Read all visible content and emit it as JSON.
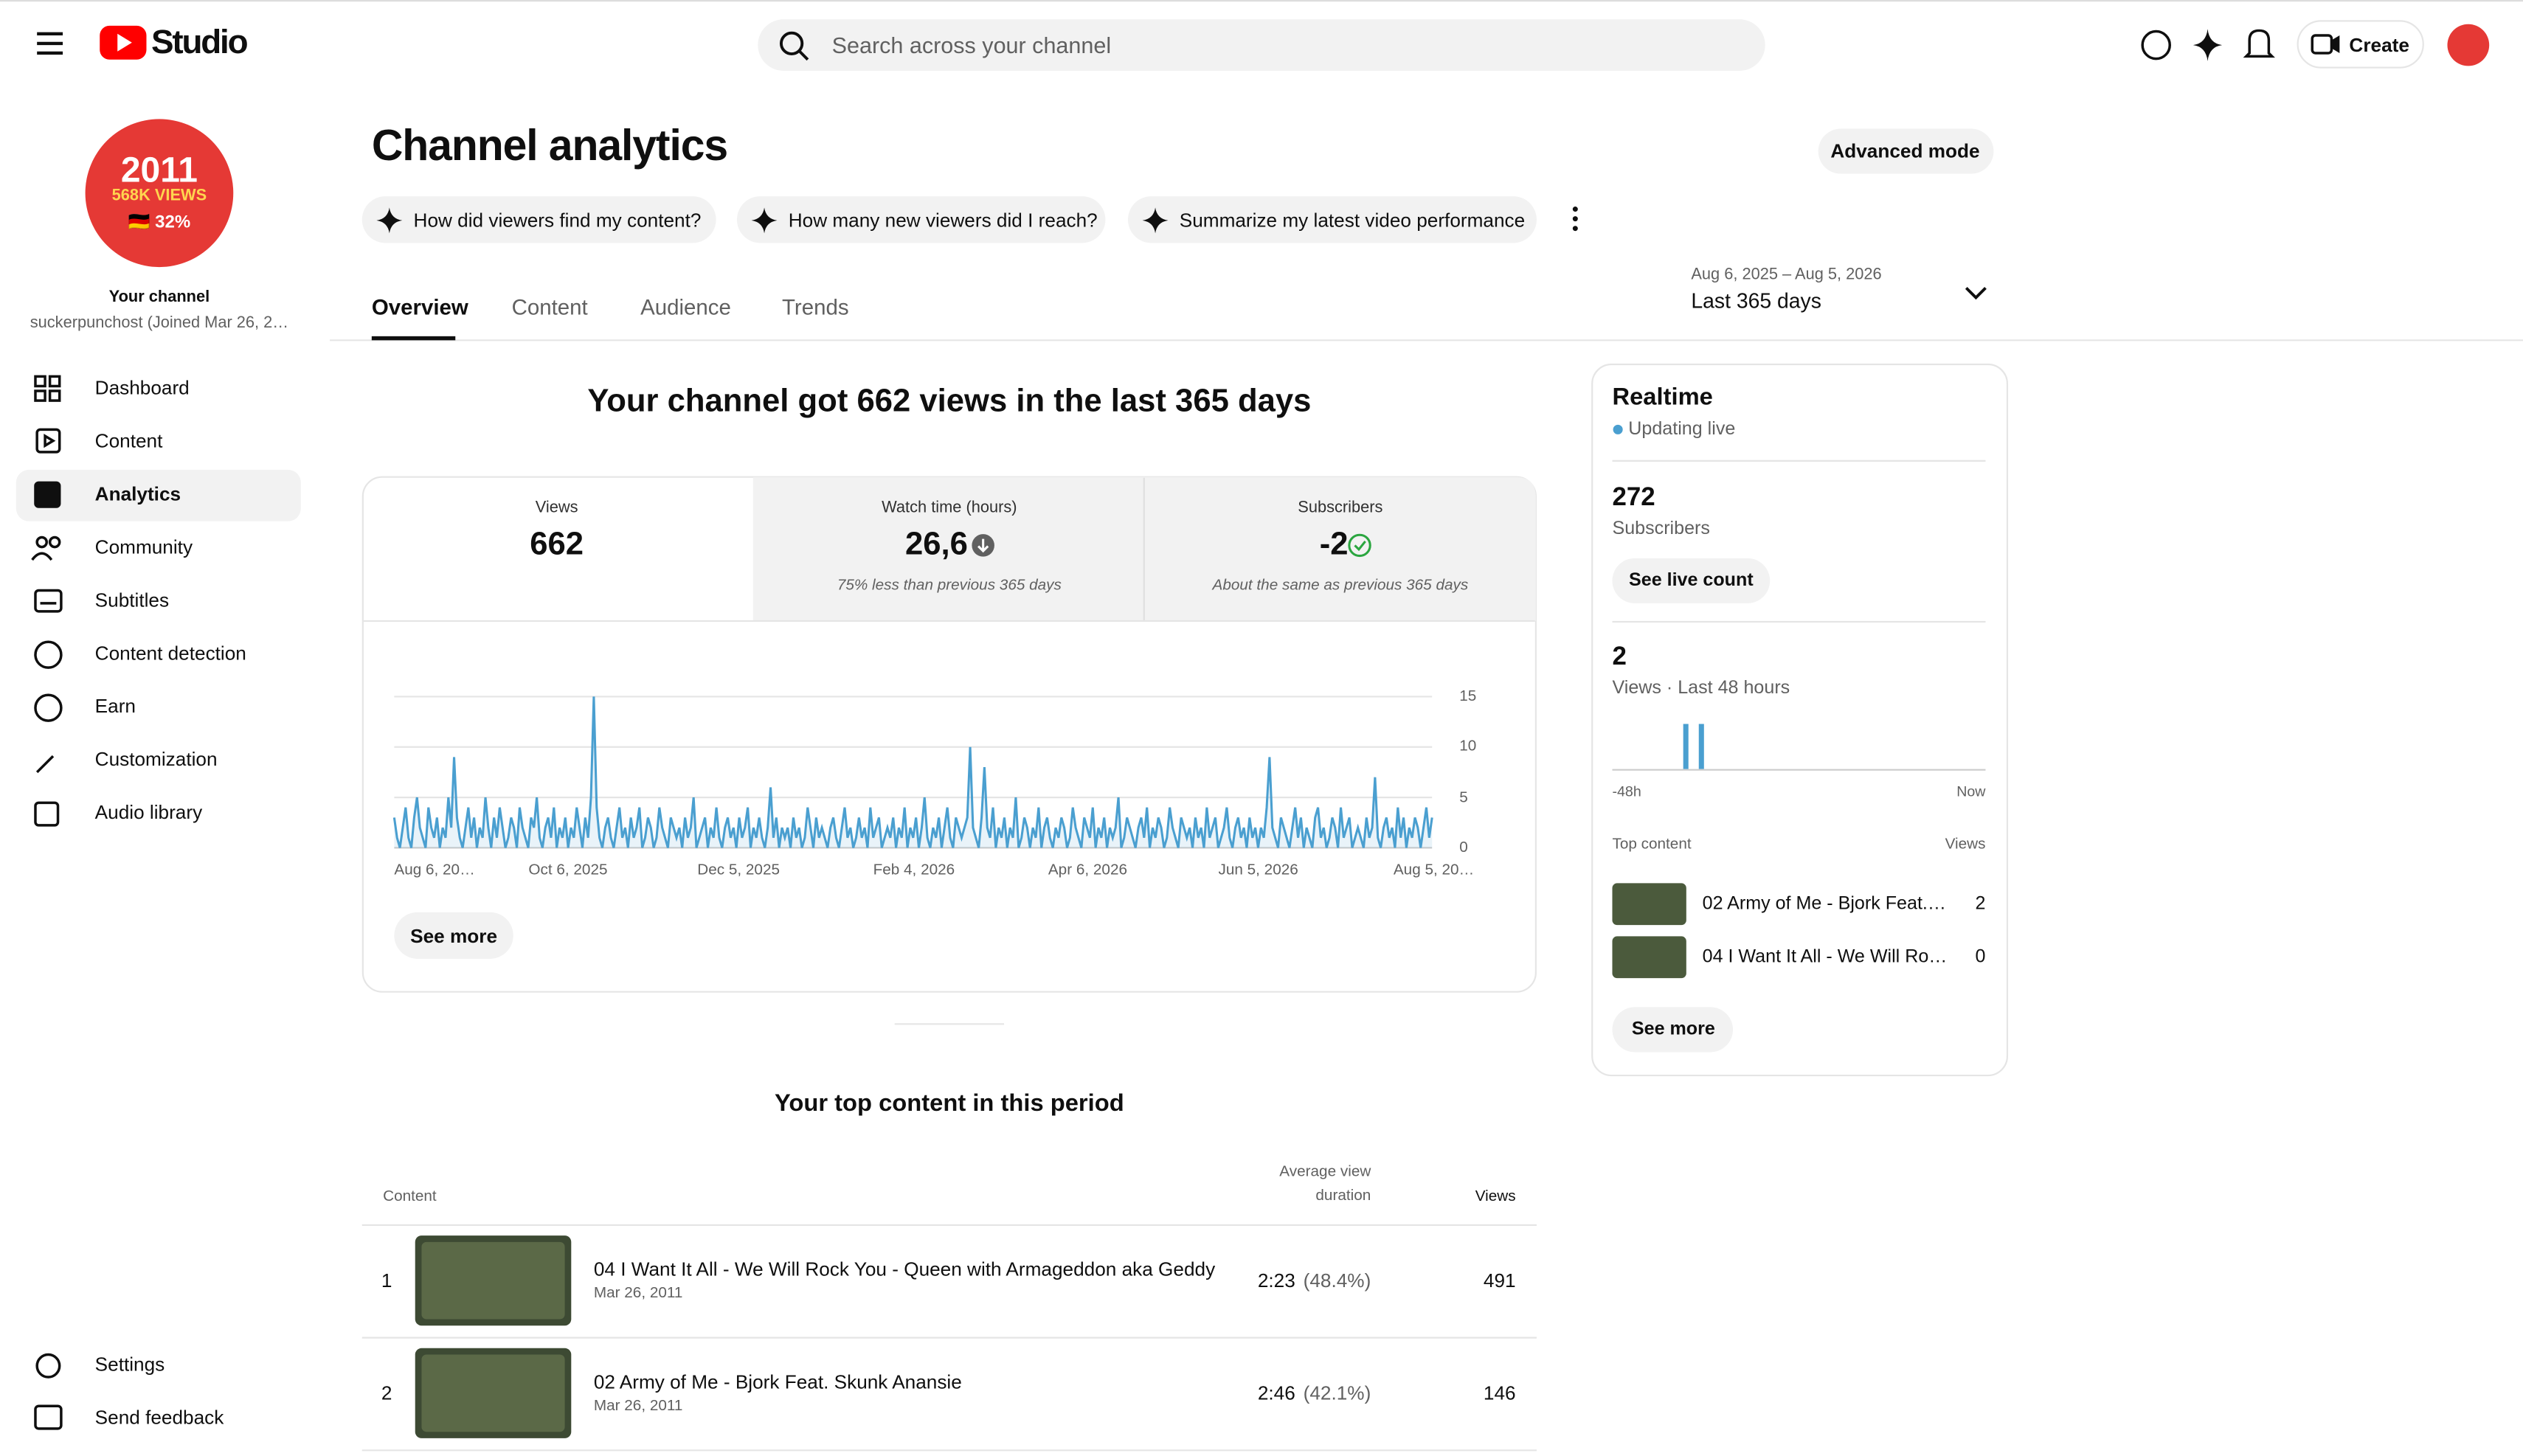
{
  "header": {
    "brand": "Studio",
    "search_placeholder": "Search across your channel",
    "create": "Create"
  },
  "sidebar": {
    "avatar_lines": [
      "2011",
      "568K VIEWS",
      "🇩🇪 32%"
    ],
    "channel_label": "Your channel",
    "channel_name": "suckerpunchost (Joined Mar 26, 2…",
    "nav": [
      "Dashboard",
      "Content",
      "Analytics",
      "Community",
      "Subtitles",
      "Content detection",
      "Earn",
      "Customization",
      "Audio library"
    ],
    "footer": [
      "Settings",
      "Send feedback"
    ]
  },
  "main": {
    "title": "Channel analytics",
    "advanced_mode": "Advanced mode",
    "suggestions": [
      "How did viewers find my content?",
      "How many new viewers did I reach?",
      "Summarize my latest video performance"
    ],
    "tabs": [
      "Overview",
      "Content",
      "Audience",
      "Trends"
    ],
    "date_range": {
      "range": "Aug 6, 2025 – Aug 5, 2026",
      "label": "Last 365 days"
    },
    "headline": "Your channel got 662 views in the last 365 days",
    "metrics": [
      {
        "label": "Views",
        "value": 662
      },
      {
        "label": "Watch time (hours)",
        "value": "26,6",
        "note": "75% less than previous 365 days"
      },
      {
        "label": "Subscribers",
        "value": -2,
        "note": "About the same as previous 365 days"
      }
    ],
    "chart": {
      "type": "line",
      "color": "#4a9fd0",
      "ylim": [
        0,
        15
      ],
      "yticks": [
        0,
        5,
        10,
        15
      ],
      "x_labels": [
        "Aug 6, 20…",
        "Oct 6, 2025",
        "Dec 5, 2025",
        "Feb 4, 2026",
        "Apr 6, 2026",
        "Jun 5, 2026",
        "Aug 5, 20…"
      ],
      "values": [
        3,
        1,
        0,
        2,
        4,
        1,
        0,
        3,
        5,
        2,
        1,
        0,
        4,
        2,
        1,
        3,
        0,
        2,
        1,
        5,
        2,
        9,
        3,
        1,
        0,
        2,
        4,
        1,
        3,
        0,
        2,
        1,
        5,
        2,
        0,
        3,
        1,
        4,
        2,
        0,
        1,
        3,
        2,
        0,
        4,
        2,
        1,
        0,
        3,
        2,
        5,
        1,
        0,
        2,
        3,
        1,
        4,
        0,
        2,
        1,
        3,
        0,
        2,
        1,
        4,
        2,
        0,
        3,
        1,
        5,
        15,
        4,
        1,
        0,
        2,
        3,
        1,
        0,
        2,
        4,
        1,
        2,
        0,
        3,
        1,
        2,
        4,
        0,
        1,
        3,
        2,
        0,
        1,
        4,
        2,
        1,
        0,
        3,
        2,
        1,
        2,
        0,
        3,
        1,
        2,
        5,
        0,
        1,
        2,
        3,
        0,
        2,
        1,
        4,
        1,
        0,
        2,
        3,
        1,
        2,
        0,
        3,
        1,
        2,
        4,
        0,
        2,
        1,
        3,
        1,
        0,
        2,
        6,
        1,
        3,
        0,
        2,
        1,
        2,
        0,
        3,
        1,
        2,
        0,
        1,
        4,
        2,
        0,
        3,
        1,
        2,
        1,
        0,
        2,
        3,
        1,
        0,
        2,
        4,
        1,
        2,
        0,
        1,
        3,
        1,
        2,
        0,
        4,
        1,
        2,
        3,
        0,
        1,
        2,
        1,
        3,
        0,
        2,
        1,
        4,
        0,
        2,
        1,
        3,
        0,
        2,
        5,
        1,
        0,
        2,
        1,
        3,
        0,
        2,
        4,
        1,
        0,
        3,
        2,
        1,
        2,
        3,
        10,
        2,
        1,
        0,
        3,
        8,
        2,
        1,
        4,
        0,
        2,
        1,
        3,
        0,
        2,
        1,
        5,
        0,
        1,
        3,
        2,
        0,
        2,
        1,
        4,
        0,
        2,
        3,
        1,
        0,
        2,
        1,
        3,
        2,
        0,
        1,
        4,
        2,
        1,
        0,
        3,
        2,
        1,
        4,
        0,
        2,
        1,
        3,
        0,
        2,
        1,
        2,
        5,
        0,
        1,
        3,
        2,
        1,
        0,
        2,
        3,
        1,
        4,
        0,
        2,
        1,
        3,
        2,
        0,
        1,
        4,
        2,
        1,
        0,
        3,
        2,
        1,
        2,
        0,
        3,
        1,
        2,
        0,
        4,
        1,
        2,
        3,
        0,
        1,
        2,
        4,
        1,
        0,
        2,
        3,
        1,
        2,
        0,
        3,
        1,
        2,
        0,
        2,
        1,
        4,
        9,
        2,
        1,
        0,
        3,
        2,
        1,
        0,
        2,
        4,
        1,
        3,
        0,
        2,
        1,
        0,
        3,
        4,
        1,
        2,
        0,
        1,
        3,
        2,
        0,
        4,
        1,
        2,
        3,
        0,
        1,
        2,
        1,
        0,
        3,
        1,
        2,
        7,
        1,
        0,
        2,
        3,
        1,
        2,
        0,
        4,
        1,
        3,
        0,
        2,
        1,
        3,
        2,
        0,
        2,
        4,
        1,
        3
      ]
    },
    "see_more": "See more",
    "top_content": {
      "title": "Your top content in this period",
      "columns": [
        "Content",
        "Average view duration",
        "Views"
      ],
      "rows": [
        {
          "rank": 1,
          "title": "04 I Want It All - We Will Rock You - Queen with Armageddon aka Geddy",
          "date": "Mar 26, 2011",
          "duration": "2:23",
          "percent": "(48.4%)",
          "views": 491
        },
        {
          "rank": 2,
          "title": "02 Army of Me - Bjork Feat. Skunk Anansie",
          "date": "Mar 26, 2011",
          "duration": "2:46",
          "percent": "(42.1%)",
          "views": 146
        }
      ]
    }
  },
  "realtime": {
    "title": "Realtime",
    "status": "Updating live",
    "subscribers": {
      "value": 272,
      "label": "Subscribers",
      "button": "See live count"
    },
    "views": {
      "value": 2,
      "label": "Views · Last 48 hours"
    },
    "mini_chart": {
      "type": "bar",
      "color": "#4a9fd0",
      "ylim": [
        0,
        1
      ],
      "values": [
        0,
        0,
        0,
        0,
        0,
        0,
        0,
        0,
        0,
        1,
        0,
        1,
        0,
        0,
        0,
        0,
        0,
        0,
        0,
        0,
        0,
        0,
        0,
        0,
        0,
        0,
        0,
        0,
        0,
        0,
        0,
        0,
        0,
        0,
        0,
        0,
        0,
        0,
        0,
        0,
        0,
        0,
        0,
        0,
        0,
        0,
        0,
        0
      ],
      "x_labels": [
        "-48h",
        "Now"
      ]
    },
    "top_content_label": "Top content",
    "views_label": "Views",
    "items": [
      {
        "title": "02 Army of Me - Bjork Feat.…",
        "views": 2
      },
      {
        "title": "04 I Want It All - We Will Ro…",
        "views": 0
      }
    ],
    "see_more": "See more"
  }
}
